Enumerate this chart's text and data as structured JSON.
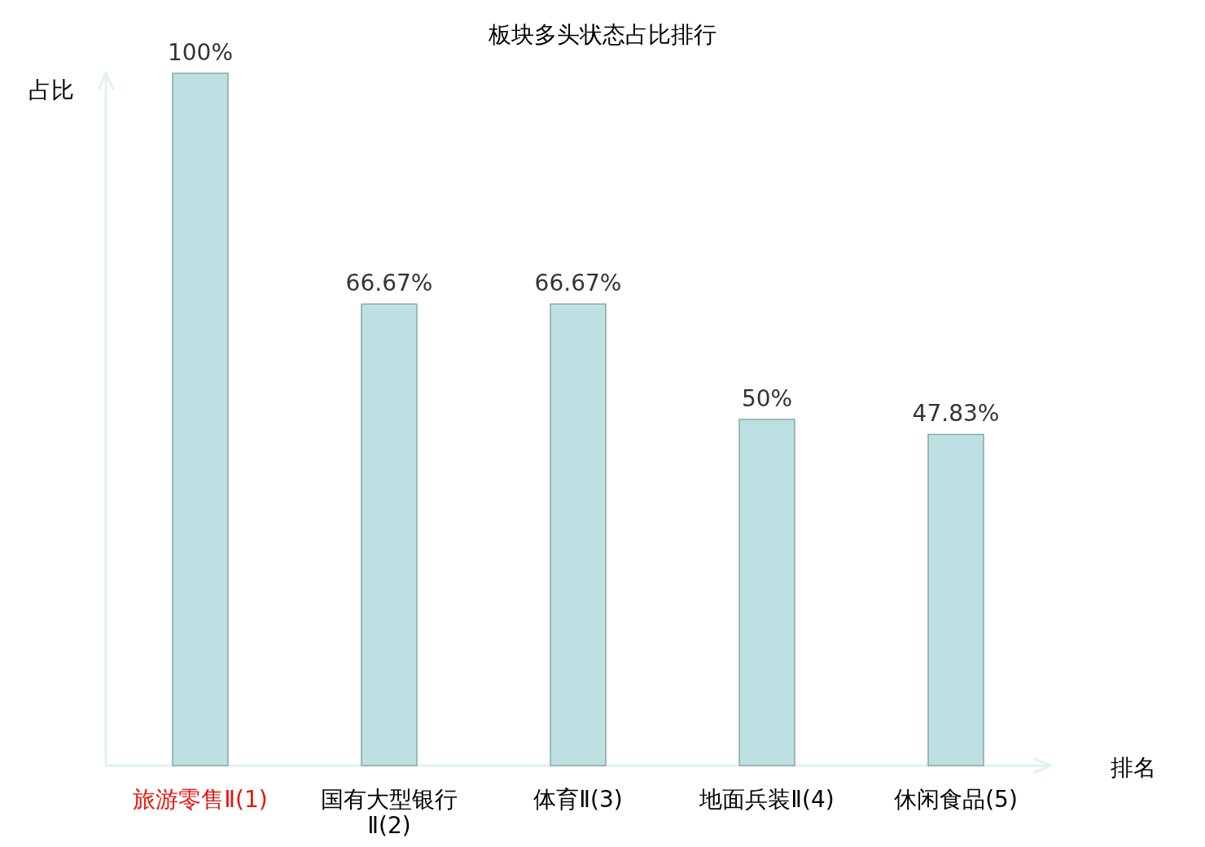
{
  "chart_data": {
    "type": "bar",
    "title": "板块多头状态占比排行",
    "xlabel": "排名",
    "ylabel": "占比",
    "categories": [
      "旅游零售Ⅱ(1)",
      "国有大型银行Ⅱ(2)",
      "体育Ⅱ(3)",
      "地面兵装Ⅱ(4)",
      "休闲食品(5)"
    ],
    "values": [
      100,
      66.67,
      66.67,
      50,
      47.83
    ],
    "value_labels": [
      "100%",
      "66.67%",
      "66.67%",
      "50%",
      "47.83%"
    ],
    "color": "#bde0e2"
  }
}
